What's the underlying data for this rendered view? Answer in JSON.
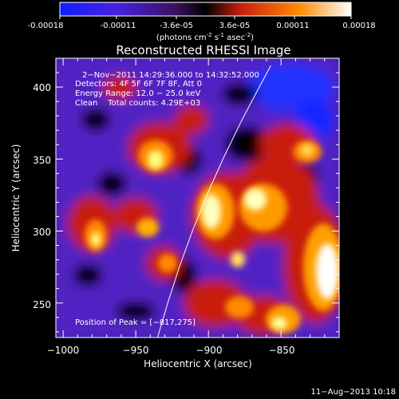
{
  "colorbar": {
    "tick_labels": [
      "-0.00018",
      "-0.00011",
      "-3.6e-05",
      "3.6e-05",
      "0.00011",
      "0.00018"
    ],
    "units": "(photons cm",
    "units_exp1": "-2",
    "units_mid": " s",
    "units_exp2": "-1",
    "units_end": " asec",
    "units_exp3": "-2",
    "units_close": ")",
    "range": [
      -0.00018,
      0.00018
    ],
    "colors": [
      "#1020ff",
      "#5a22d8",
      "#000000",
      "#c81e10",
      "#ff8a00",
      "#ffffff"
    ]
  },
  "chart_data": {
    "type": "heatmap",
    "title": "Reconstructed RHESSI Image",
    "xlabel": "Heliocentric X (arcsec)",
    "ylabel": "Heliocentric Y (arcsec)",
    "xlim": [
      -1005,
      -810
    ],
    "ylim": [
      226,
      420
    ],
    "x_ticks": [
      -1000,
      -950,
      -900,
      -850
    ],
    "y_ticks": [
      250,
      300,
      350,
      400
    ],
    "x_tick_labels": [
      "−1000",
      "−950",
      "−900",
      "−850"
    ],
    "y_tick_labels": [
      "250",
      "300",
      "350",
      "400"
    ],
    "annotations": [
      "2−Nov−2011 14:29:36.000 to 14:32:52.000",
      "Detectors: 4F 5F 6F 7F 8F, Att 0",
      "Energy Range: 12.0 − 25.0 keV",
      "Clean    Total counts: 4.29E+03"
    ],
    "peak_label": "Position of Peak = [−817,275]",
    "peak": [
      -817,
      275
    ],
    "limb_curve": [
      [
        -935,
        226
      ],
      [
        -928,
        250
      ],
      [
        -920,
        275
      ],
      [
        -911,
        300
      ],
      [
        -901,
        325
      ],
      [
        -890,
        350
      ],
      [
        -878,
        375
      ],
      [
        -865,
        400
      ],
      [
        -857,
        415
      ]
    ],
    "bright_regions": [
      {
        "x": -875,
        "y": 300,
        "level": 0.9
      },
      {
        "x": -815,
        "y": 290,
        "level": 1.0
      },
      {
        "x": -830,
        "y": 260,
        "level": 0.95
      },
      {
        "x": -895,
        "y": 305,
        "level": 0.85
      },
      {
        "x": -955,
        "y": 355,
        "level": 0.75
      },
      {
        "x": -975,
        "y": 300,
        "level": 0.7
      },
      {
        "x": -850,
        "y": 335,
        "level": 0.8
      },
      {
        "x": -915,
        "y": 260,
        "level": 0.7
      },
      {
        "x": -850,
        "y": 230,
        "level": 0.85
      }
    ]
  },
  "footer": {
    "date": "11−Aug−2013 10:18"
  }
}
